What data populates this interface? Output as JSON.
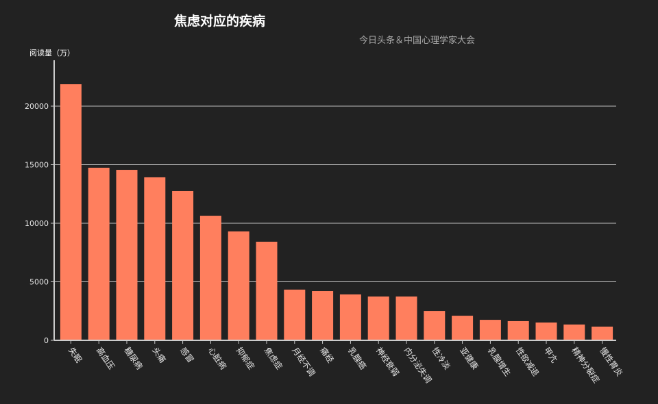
{
  "chart_data": {
    "type": "bar",
    "title": "焦虑对应的疾病",
    "subtitle": "今日头条＆中国心理学家大会",
    "xlabel": "",
    "ylabel": "阅读量（万）",
    "ylim": [
      0,
      23000
    ],
    "yticks": [
      0,
      5000,
      10000,
      15000,
      20000
    ],
    "grid": true,
    "legend": null,
    "bar_color": "#ff7f5e",
    "background": "#222222",
    "categories": [
      "失眠",
      "高血压",
      "糖尿病",
      "头痛",
      "感冒",
      "心脏病",
      "抑郁症",
      "焦虑症",
      "月经不调",
      "痛经",
      "乳腺癌",
      "神经衰弱",
      "内分泌失调",
      "性冷淡",
      "亚健康",
      "乳腺增生",
      "性欲减退",
      "甲亢",
      "精神分裂症",
      "慢性胃炎"
    ],
    "values": [
      21870,
      14740,
      14560,
      13920,
      12750,
      10640,
      9300,
      8420,
      4330,
      4210,
      3920,
      3740,
      3740,
      2510,
      2100,
      1750,
      1640,
      1520,
      1350,
      1170
    ]
  }
}
